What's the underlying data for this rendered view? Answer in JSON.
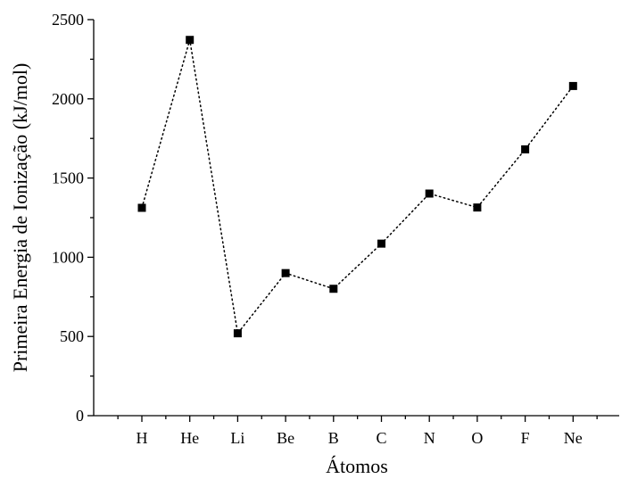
{
  "chart_data": {
    "type": "line",
    "categories": [
      "H",
      "He",
      "Li",
      "Be",
      "B",
      "C",
      "N",
      "O",
      "F",
      "Ne"
    ],
    "series": [
      {
        "values": [
          1312,
          2372,
          520,
          900,
          801,
          1086,
          1402,
          1314,
          1681,
          2081
        ],
        "marker": "square",
        "line_style": "dotted",
        "color": "#000000"
      }
    ],
    "xlabel": "Átomos",
    "ylabel": "Primeira Energia de Ionização (kJ/mol)",
    "ylim": [
      0,
      2500
    ],
    "yticks": [
      "0",
      "500",
      "1000",
      "1500",
      "2000",
      "2500"
    ],
    "grid": false,
    "legend": "none"
  }
}
